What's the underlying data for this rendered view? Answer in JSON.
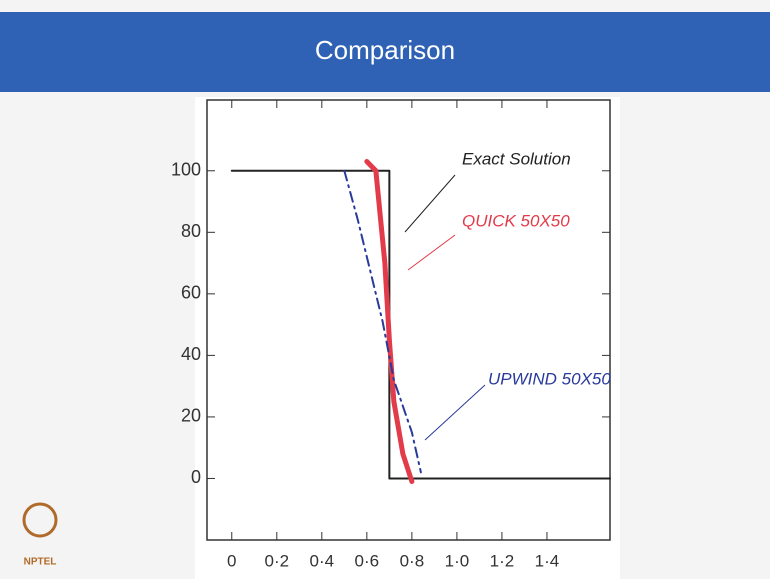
{
  "chart_data": {
    "type": "line",
    "title": "Comparison",
    "series": [
      {
        "name": "Exact Solution",
        "color": "#222222",
        "line_style": "solid",
        "x": [
          0,
          0.7,
          0.7,
          1.68
        ],
        "values": [
          100,
          100,
          0,
          0
        ]
      },
      {
        "name": "QUICK 50X50",
        "color": "#e23b4a",
        "line_style": "solid",
        "x": [
          0.6,
          0.64,
          0.68,
          0.7,
          0.72,
          0.76,
          0.8
        ],
        "values": [
          103,
          100,
          70,
          45,
          25,
          8,
          -1
        ]
      },
      {
        "name": "UPWIND 50X50",
        "color": "#2a3a9a",
        "line_style": "dashed",
        "x": [
          0.5,
          0.56,
          0.67,
          0.72,
          0.8,
          0.84
        ],
        "values": [
          100,
          84,
          51,
          32,
          15,
          2
        ]
      }
    ],
    "xlim": [
      -0.11,
      1.68
    ],
    "ylim": [
      -20,
      123
    ],
    "xticks": [
      0,
      {
        "value": 0.2,
        "label": "0·2"
      },
      {
        "value": 0.4,
        "label": "0·4"
      },
      {
        "value": 0.6,
        "label": "0·6"
      },
      {
        "value": 0.8,
        "label": "0·8"
      },
      {
        "value": 1.0,
        "label": "1·0"
      },
      {
        "value": 1.2,
        "label": "1·2"
      },
      {
        "value": 1.4,
        "label": "1·4"
      }
    ],
    "yticks": [
      0,
      20,
      40,
      60,
      80,
      100
    ]
  },
  "logo": "NPTEL"
}
